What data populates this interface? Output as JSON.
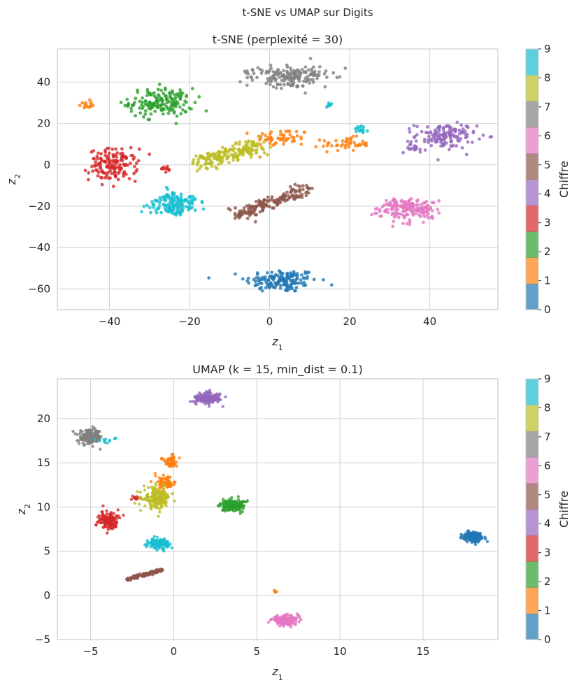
{
  "figure_title": "t-SNE vs UMAP sur Digits",
  "chart_data": [
    {
      "type": "scatter",
      "title": "t-SNE (perplexité = 30)",
      "xlabel": "z1",
      "ylabel": "z2",
      "xlim": [
        -53,
        57
      ],
      "ylim": [
        -70,
        56
      ],
      "xticks": [
        -40,
        -20,
        0,
        20,
        40
      ],
      "yticks": [
        -60,
        -40,
        -20,
        0,
        20,
        40
      ],
      "xtick_labels": [
        "−40",
        "−20",
        "0",
        "20",
        "40"
      ],
      "ytick_labels": [
        "−60",
        "−40",
        "−20",
        "0",
        "20",
        "40"
      ],
      "grid": true,
      "colorbar": {
        "label": "Chiffre",
        "ticks": [
          "0",
          "1",
          "2",
          "3",
          "4",
          "5",
          "6",
          "7",
          "8",
          "9"
        ]
      },
      "clusters": [
        {
          "digit": 0,
          "cx": 3,
          "cy": -56,
          "sx": 4.5,
          "sy": 2.8,
          "n": 150,
          "shape": "blob"
        },
        {
          "digit": 1,
          "cx": 3,
          "cy": 13,
          "sx": 3.5,
          "sy": 2.2,
          "n": 55,
          "shape": "blob"
        },
        {
          "digit": 1,
          "cx": 19,
          "cy": 10,
          "sx": 3.0,
          "sy": 1.6,
          "n": 45,
          "shape": "blob"
        },
        {
          "digit": 1,
          "cx": -46,
          "cy": 29,
          "sx": 0.8,
          "sy": 1.0,
          "n": 14,
          "shape": "blob"
        },
        {
          "digit": 2,
          "cx": -27,
          "cy": 30,
          "sx": 4.0,
          "sy": 3.5,
          "n": 170,
          "shape": "blob"
        },
        {
          "digit": 3,
          "cx": -39,
          "cy": 0,
          "sx": 3.0,
          "sy": 3.8,
          "n": 150,
          "shape": "blob"
        },
        {
          "digit": 3,
          "cx": -26,
          "cy": -2,
          "sx": 0.6,
          "sy": 0.8,
          "n": 10,
          "shape": "blob"
        },
        {
          "digit": 4,
          "cx": 44,
          "cy": 14,
          "sx": 3.8,
          "sy": 3.0,
          "n": 140,
          "shape": "blob"
        },
        {
          "digit": 4,
          "cx": 36,
          "cy": 8,
          "sx": 1.5,
          "sy": 1.0,
          "n": 18,
          "shape": "blob"
        },
        {
          "digit": 5,
          "cx": -2,
          "cy": -19,
          "x0": -9,
          "y0": -25,
          "x1": 10,
          "y1": -11,
          "spread": 2.2,
          "n": 170,
          "shape": "line"
        },
        {
          "digit": 6,
          "cx": 34,
          "cy": -21,
          "sx": 4.0,
          "sy": 2.8,
          "n": 170,
          "shape": "blob"
        },
        {
          "digit": 7,
          "cx": 6,
          "cy": 43,
          "sx": 5.0,
          "sy": 2.6,
          "n": 170,
          "shape": "blob"
        },
        {
          "digit": 8,
          "cx": -10,
          "cy": 5,
          "x0": -18,
          "y0": 1,
          "x1": -2,
          "y1": 9,
          "spread": 3.0,
          "n": 180,
          "shape": "line"
        },
        {
          "digit": 9,
          "cx": -24,
          "cy": -19,
          "sx": 3.0,
          "sy": 2.8,
          "n": 150,
          "shape": "blob"
        },
        {
          "digit": 9,
          "cx": 23,
          "cy": 17,
          "sx": 0.8,
          "sy": 0.8,
          "n": 14,
          "shape": "blob"
        },
        {
          "digit": 9,
          "cx": 15,
          "cy": 29,
          "sx": 0.5,
          "sy": 0.7,
          "n": 8,
          "shape": "blob"
        }
      ]
    },
    {
      "type": "scatter",
      "title": "UMAP (k = 15, min_dist = 0.1)",
      "xlabel": "z1",
      "ylabel": "z2",
      "xlim": [
        -7,
        19.5
      ],
      "ylim": [
        -5,
        24.5
      ],
      "xticks": [
        -5,
        0,
        5,
        10,
        15
      ],
      "yticks": [
        -5,
        0,
        5,
        10,
        15,
        20
      ],
      "xtick_labels": [
        "−5",
        "0",
        "5",
        "10",
        "15"
      ],
      "ytick_labels": [
        "−5",
        "0",
        "5",
        "10",
        "15",
        "20"
      ],
      "grid": true,
      "colorbar": {
        "label": "Chiffre",
        "ticks": [
          "0",
          "1",
          "2",
          "3",
          "4",
          "5",
          "6",
          "7",
          "8",
          "9"
        ]
      },
      "clusters": [
        {
          "digit": 0,
          "cx": 18.0,
          "cy": 6.6,
          "sx": 0.3,
          "sy": 0.28,
          "n": 170,
          "shape": "blob"
        },
        {
          "digit": 1,
          "cx": -0.2,
          "cy": 15.2,
          "sx": 0.2,
          "sy": 0.3,
          "n": 60,
          "shape": "blob"
        },
        {
          "digit": 1,
          "cx": -0.5,
          "cy": 12.8,
          "sx": 0.3,
          "sy": 0.35,
          "n": 60,
          "shape": "blob"
        },
        {
          "digit": 1,
          "cx": 6.1,
          "cy": 0.4,
          "sx": 0.05,
          "sy": 0.08,
          "n": 6,
          "shape": "blob"
        },
        {
          "digit": 2,
          "cx": 3.6,
          "cy": 10.2,
          "sx": 0.35,
          "sy": 0.35,
          "n": 170,
          "shape": "blob"
        },
        {
          "digit": 3,
          "cx": -3.9,
          "cy": 8.5,
          "sx": 0.3,
          "sy": 0.45,
          "n": 160,
          "shape": "blob"
        },
        {
          "digit": 3,
          "cx": -2.3,
          "cy": 11.0,
          "sx": 0.15,
          "sy": 0.12,
          "n": 10,
          "shape": "blob"
        },
        {
          "digit": 4,
          "cx": 2.0,
          "cy": 22.3,
          "sx": 0.4,
          "sy": 0.3,
          "n": 170,
          "shape": "blob"
        },
        {
          "digit": 5,
          "cx": -1.5,
          "cy": 2.3,
          "x0": -2.8,
          "y0": 1.8,
          "x1": -0.7,
          "y1": 2.9,
          "spread": 0.15,
          "n": 170,
          "shape": "line"
        },
        {
          "digit": 6,
          "cx": 6.7,
          "cy": -2.8,
          "sx": 0.4,
          "sy": 0.25,
          "n": 170,
          "shape": "blob"
        },
        {
          "digit": 7,
          "cx": -5.0,
          "cy": 17.9,
          "sx": 0.35,
          "sy": 0.4,
          "n": 170,
          "shape": "blob"
        },
        {
          "digit": 8,
          "cx": -1.0,
          "cy": 11.0,
          "sx": 0.4,
          "sy": 0.6,
          "n": 170,
          "shape": "blob"
        },
        {
          "digit": 9,
          "cx": -0.9,
          "cy": 5.9,
          "sx": 0.3,
          "sy": 0.25,
          "n": 150,
          "shape": "blob"
        },
        {
          "digit": 9,
          "cx": -4.0,
          "cy": 17.6,
          "sx": 0.3,
          "sy": 0.15,
          "n": 12,
          "shape": "blob"
        }
      ]
    }
  ],
  "palette": [
    "#1f77b4",
    "#ff7f0e",
    "#2ca02c",
    "#d62728",
    "#9467bd",
    "#8c564b",
    "#e377c2",
    "#7f7f7f",
    "#bcbd22",
    "#17becf"
  ]
}
